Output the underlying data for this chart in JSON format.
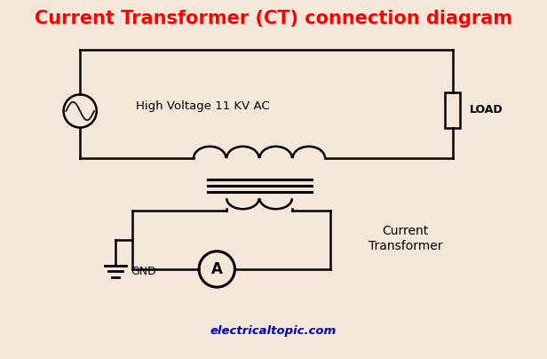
{
  "title": "Current Transformer (CT) connection diagram",
  "title_color": "#ff0000",
  "title_fontsize": 15,
  "bg_color": "#f5e6da",
  "line_color": "#000000",
  "text_hv": "High Voltage 11 KV AC",
  "text_load": "LOAD",
  "text_gnd": "GND",
  "text_ct": "Current\nTransformer",
  "text_website": "electricaltopic.com",
  "website_color": "#0000cc",
  "figsize": [
    6.16,
    4.04
  ],
  "dpi": 100
}
